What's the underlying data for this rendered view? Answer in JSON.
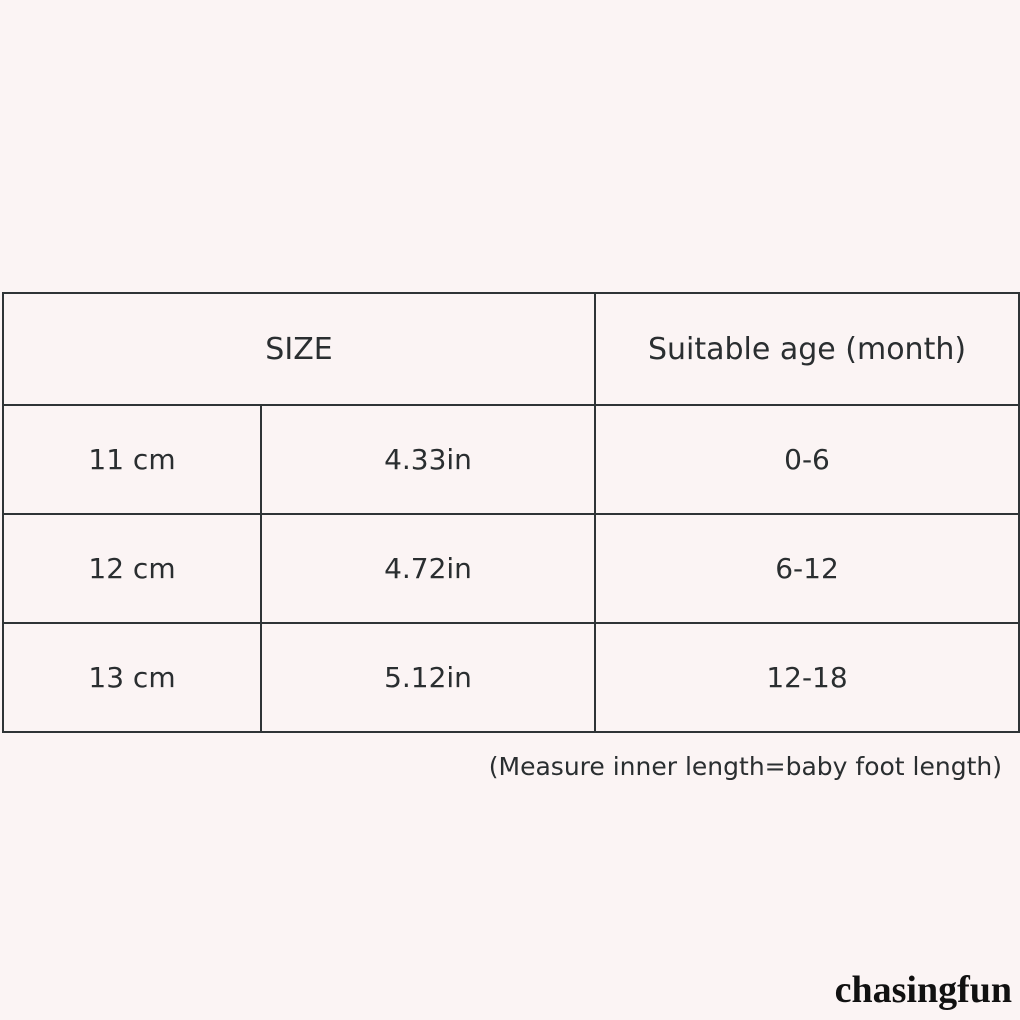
{
  "table": {
    "header": [
      "SIZE",
      "Suitable age (month)"
    ],
    "rows": [
      [
        "11 cm",
        "4.33in",
        "0-6"
      ],
      [
        "12 cm",
        "4.72in",
        "6-12"
      ],
      [
        "13 cm",
        "5.12in",
        "12-18"
      ]
    ]
  },
  "note": "(Measure inner length=baby foot length)",
  "brand": "chasingfun"
}
